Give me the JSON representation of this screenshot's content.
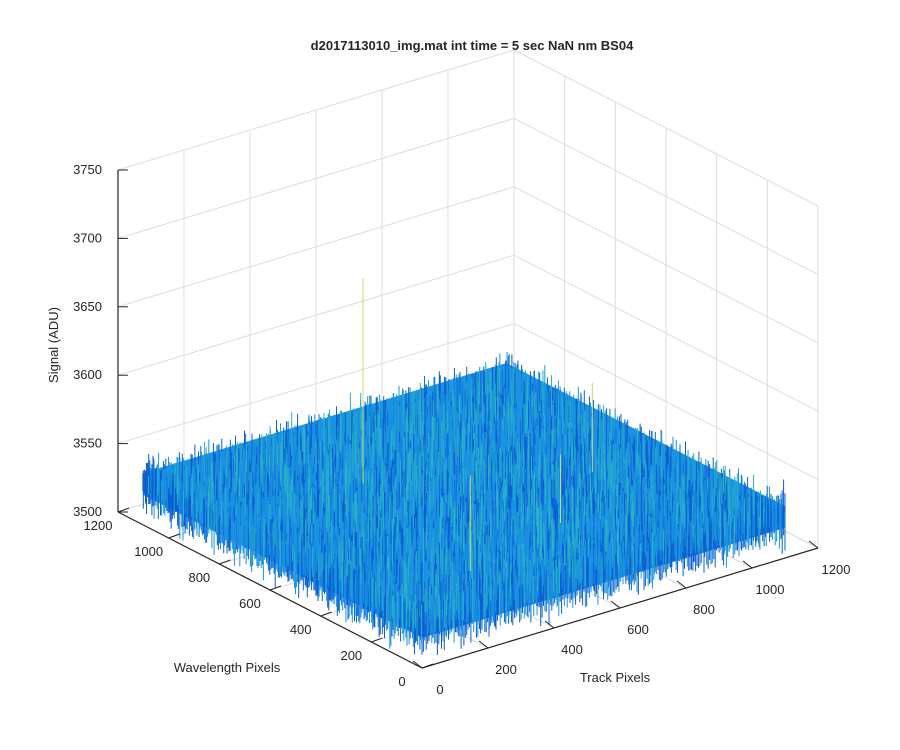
{
  "chart_data": {
    "type": "surface",
    "title": "d2017113010_img.mat int time = 5 sec  NaN nm BS04",
    "xlabel": "Track Pixels",
    "ylabel": "Wavelength Pixels",
    "zlabel": "Signal (ADU)",
    "xlim": [
      0,
      1200
    ],
    "ylim": [
      0,
      1200
    ],
    "zlim": [
      3500,
      3750
    ],
    "x_ticks": [
      "0",
      "200",
      "400",
      "600",
      "800",
      "1000",
      "1200"
    ],
    "y_ticks": [
      "0",
      "200",
      "400",
      "600",
      "800",
      "1000",
      "1200"
    ],
    "z_ticks": [
      "3500",
      "3550",
      "3600",
      "3650",
      "3700",
      "3750"
    ],
    "x_ticks_values": [
      0,
      200,
      400,
      600,
      800,
      1000,
      1200
    ],
    "y_ticks_values": [
      0,
      200,
      400,
      600,
      800,
      1000,
      1200
    ],
    "z_ticks_values": [
      3500,
      3550,
      3600,
      3650,
      3700,
      3750
    ],
    "data_extent": {
      "x": [
        0,
        1100
      ],
      "y": [
        0,
        1100
      ]
    },
    "signal_mean": 3530,
    "signal_noise_range": [
      3510,
      3565
    ],
    "max_spike": 3680,
    "grid": true,
    "colors": {
      "surface_low": "#0a5fd0",
      "surface_mid": "#1a93e0",
      "surface_high": "#2ab0c8",
      "grid": "#dcdcdc",
      "axis": "#262626"
    }
  }
}
